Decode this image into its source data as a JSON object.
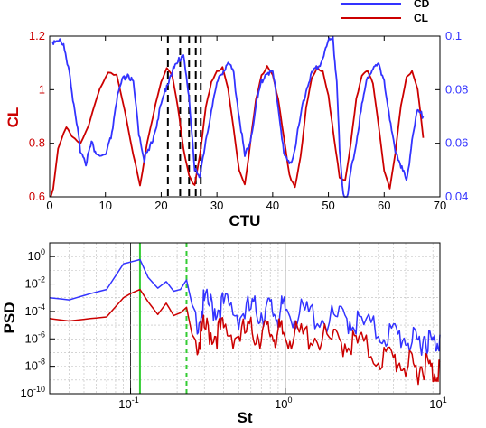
{
  "colors": {
    "cd": "#3333ff",
    "cl": "#cc0000",
    "highlight": "#33cc33",
    "marker": "#000000"
  },
  "chart_data": [
    {
      "type": "line",
      "xlabel": "CTU",
      "ylabel": "CL",
      "y2label": "CD",
      "xlim": [
        0,
        70
      ],
      "ylim": [
        0.6,
        1.2
      ],
      "y2lim": [
        0.04,
        0.1
      ],
      "x_ticks": [
        "0",
        "10",
        "20",
        "30",
        "40",
        "50",
        "60",
        "70"
      ],
      "y_ticks": [
        "0.6",
        "0.8",
        "1",
        "1.2"
      ],
      "y2_ticks": [
        "0.04",
        "0.06",
        "0.08",
        "0.1"
      ],
      "legend": {
        "position": "top-right",
        "items": [
          "CD",
          "CL"
        ]
      },
      "vlines_x": [
        21.2,
        23.4,
        25.0,
        26.2,
        27.1
      ],
      "series": [
        {
          "name": "CL",
          "axis": "left",
          "color": "#cc0000",
          "x": [
            0.2,
            1.5,
            3,
            4,
            5.5,
            7,
            9,
            10.5,
            12,
            13.5,
            15,
            16.2,
            17.5,
            19,
            20,
            21,
            22,
            23,
            24,
            25,
            26,
            27,
            28,
            29,
            30,
            31,
            32,
            33,
            34,
            35,
            36,
            37,
            38,
            39,
            40,
            41,
            42,
            43,
            44,
            45,
            46,
            47,
            48,
            49,
            50,
            51,
            52,
            53,
            54,
            55,
            56,
            57,
            58,
            59,
            60,
            61,
            62,
            63,
            64,
            65,
            66,
            67
          ],
          "y": [
            0.55,
            0.78,
            0.86,
            0.83,
            0.8,
            0.87,
            1.0,
            1.06,
            1.06,
            0.92,
            0.76,
            0.64,
            0.8,
            0.95,
            1.03,
            1.08,
            1.05,
            0.93,
            0.78,
            0.68,
            0.64,
            0.76,
            0.93,
            1.03,
            1.07,
            1.08,
            1.0,
            0.85,
            0.7,
            0.65,
            0.8,
            0.96,
            1.05,
            1.09,
            1.06,
            0.96,
            0.82,
            0.68,
            0.64,
            0.75,
            0.93,
            1.04,
            1.08,
            1.07,
            0.98,
            0.82,
            0.67,
            0.66,
            0.8,
            0.97,
            1.05,
            1.07,
            1.02,
            0.87,
            0.7,
            0.63,
            0.76,
            0.94,
            1.05,
            1.07,
            1.0,
            0.82
          ]
        },
        {
          "name": "CD",
          "axis": "right",
          "color": "#3333ff",
          "x": [
            0.5,
            1.5,
            2.5,
            3.5,
            4.5,
            5.5,
            6.5,
            7.5,
            8.5,
            10,
            11,
            12,
            13,
            14,
            15,
            16,
            17,
            18,
            19,
            20,
            21,
            22,
            23,
            24,
            25,
            26,
            27,
            28,
            29,
            30,
            31,
            32,
            33,
            34,
            35,
            36,
            37,
            38,
            39,
            40,
            41,
            42,
            43,
            44,
            45,
            46,
            47,
            48,
            49,
            50,
            50.8,
            51.5,
            52,
            53,
            54,
            55,
            56,
            57,
            58,
            59,
            60,
            61,
            62,
            63,
            64,
            65,
            66,
            67
          ],
          "y": [
            0.098,
            0.099,
            0.096,
            0.088,
            0.071,
            0.058,
            0.053,
            0.06,
            0.056,
            0.055,
            0.062,
            0.076,
            0.083,
            0.086,
            0.082,
            0.064,
            0.054,
            0.058,
            0.066,
            0.074,
            0.082,
            0.087,
            0.09,
            0.094,
            0.076,
            0.051,
            0.048,
            0.06,
            0.073,
            0.082,
            0.087,
            0.09,
            0.086,
            0.07,
            0.055,
            0.061,
            0.074,
            0.083,
            0.087,
            0.086,
            0.074,
            0.056,
            0.052,
            0.058,
            0.07,
            0.08,
            0.086,
            0.088,
            0.092,
            0.098,
            0.1,
            0.082,
            0.058,
            0.033,
            0.049,
            0.061,
            0.074,
            0.085,
            0.088,
            0.089,
            0.084,
            0.068,
            0.058,
            0.052,
            0.045,
            0.062,
            0.072,
            0.07
          ]
        }
      ]
    },
    {
      "type": "line",
      "xlabel": "St",
      "ylabel": "PSD",
      "x_scale": "log",
      "y_scale": "log",
      "xlim": [
        0.03,
        10
      ],
      "ylim": [
        1e-10,
        10
      ],
      "x_ticks": [
        {
          "b": "10",
          "e": "-1"
        },
        {
          "b": "10",
          "e": "0"
        },
        {
          "b": "10",
          "e": "1"
        }
      ],
      "y_ticks": [
        {
          "b": "10",
          "e": "0"
        },
        {
          "b": "10",
          "e": "-2"
        },
        {
          "b": "10",
          "e": "-4"
        },
        {
          "b": "10",
          "e": "-6"
        },
        {
          "b": "10",
          "e": "-8"
        },
        {
          "b": "10",
          "e": "-10"
        }
      ],
      "grid": true,
      "highlight_lines": [
        {
          "x": 0.115,
          "style": "solid"
        },
        {
          "x": 0.23,
          "style": "dashed"
        }
      ],
      "series": [
        {
          "name": "CD",
          "color": "#3333ff",
          "x": [
            0.03,
            0.04,
            0.055,
            0.07,
            0.09,
            0.1,
            0.115,
            0.13,
            0.15,
            0.17,
            0.19,
            0.21,
            0.23,
            0.25,
            0.27,
            0.3,
            0.35,
            0.4,
            0.5,
            0.6,
            0.7,
            0.8,
            0.9,
            1,
            1.2,
            1.5,
            2,
            2.5,
            3,
            4,
            5,
            6,
            7,
            8,
            9,
            10
          ],
          "y": [
            0.001,
            0.0007,
            0.002,
            0.004,
            0.3,
            0.4,
            0.6,
            0.03,
            0.005,
            0.015,
            0.003,
            0.004,
            0.02,
            0.0003,
            5e-05,
            0.0005,
            0.0003,
            0.0004,
            0.0001,
            0.0002,
            0.00015,
            0.0002,
            0.0001,
            0.0002,
            8e-05,
            0.0001,
            3e-05,
            5e-05,
            2e-05,
            5e-06,
            3e-06,
            2e-06,
            5e-07,
            3e-06,
            5e-07,
            2e-06
          ]
        },
        {
          "name": "CL",
          "color": "#cc0000",
          "x": [
            0.03,
            0.04,
            0.055,
            0.07,
            0.09,
            0.1,
            0.115,
            0.13,
            0.15,
            0.17,
            0.19,
            0.21,
            0.23,
            0.25,
            0.27,
            0.3,
            0.35,
            0.4,
            0.5,
            0.6,
            0.7,
            0.8,
            0.9,
            1,
            1.2,
            1.5,
            2,
            2.5,
            3,
            4,
            5,
            6,
            7,
            8,
            9,
            10
          ],
          "y": [
            3e-05,
            2e-05,
            3e-05,
            4e-05,
            0.001,
            0.002,
            0.004,
            0.0005,
            6e-05,
            0.0004,
            5e-05,
            8e-05,
            0.0002,
            2e-06,
            5e-07,
            8e-06,
            4e-06,
            6e-06,
            3e-06,
            5e-06,
            4e-06,
            5e-06,
            3e-06,
            4e-06,
            2e-06,
            3e-06,
            8e-07,
            1e-06,
            6e-07,
            8e-08,
            5e-08,
            2e-08,
            8e-09,
            3e-08,
            5e-09,
            2e-08
          ]
        }
      ]
    }
  ]
}
